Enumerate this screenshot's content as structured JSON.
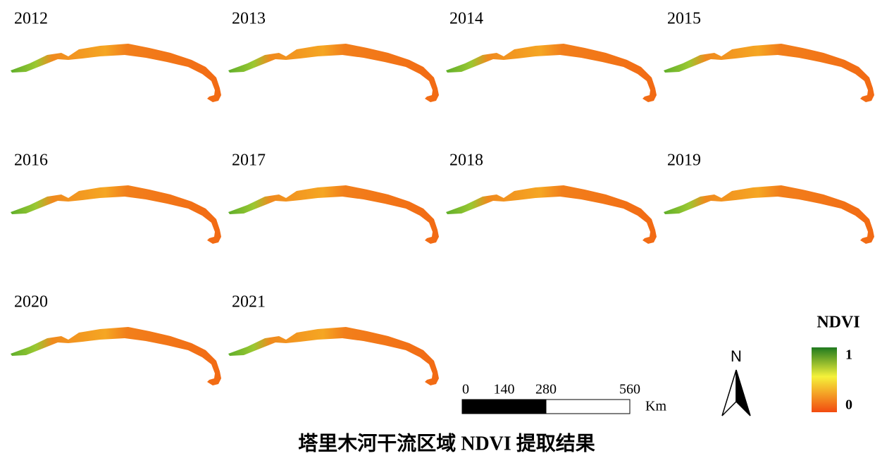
{
  "panels": [
    {
      "label": "2012"
    },
    {
      "label": "2013"
    },
    {
      "label": "2014"
    },
    {
      "label": "2015"
    },
    {
      "label": "2016"
    },
    {
      "label": "2017"
    },
    {
      "label": "2018"
    },
    {
      "label": "2019"
    },
    {
      "label": "2020"
    },
    {
      "label": "2021"
    }
  ],
  "scale_bar": {
    "ticks": [
      0,
      140,
      280,
      560
    ],
    "unit": "Km"
  },
  "north_arrow": {
    "label": "N"
  },
  "legend": {
    "title": "NDVI",
    "max_label": "1",
    "min_label": "0"
  },
  "caption": "塔里木河干流区域 NDVI 提取结果"
}
